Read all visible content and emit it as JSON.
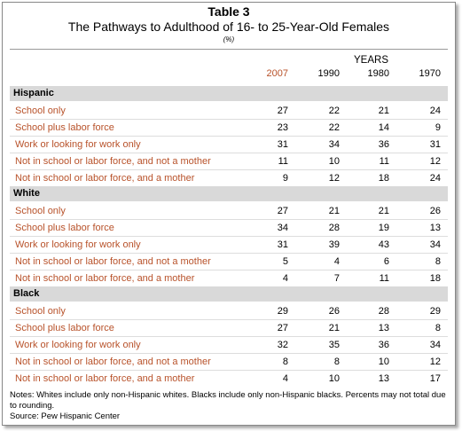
{
  "header": {
    "title": "Table 3",
    "subtitle": "The Pathways to Adulthood of 16- to 25-Year-Old Females",
    "unit": "(%)"
  },
  "table": {
    "group_label": "YEARS",
    "columns": [
      "2007",
      "1990",
      "1980",
      "1970"
    ],
    "sections": [
      {
        "name": "Hispanic",
        "rows": [
          {
            "label": "School only",
            "values": [
              27,
              22,
              21,
              24
            ]
          },
          {
            "label": "School plus labor force",
            "values": [
              23,
              22,
              14,
              9
            ]
          },
          {
            "label": "Work or looking for work only",
            "values": [
              31,
              34,
              36,
              31
            ]
          },
          {
            "label": "Not in school or labor force, and not a mother",
            "values": [
              11,
              10,
              11,
              12
            ]
          },
          {
            "label": "Not in school or labor force, and a mother",
            "values": [
              9,
              12,
              18,
              24
            ]
          }
        ]
      },
      {
        "name": "White",
        "rows": [
          {
            "label": "School only",
            "values": [
              27,
              21,
              21,
              26
            ]
          },
          {
            "label": "School plus labor force",
            "values": [
              34,
              28,
              19,
              13
            ]
          },
          {
            "label": "Work or looking for work only",
            "values": [
              31,
              39,
              43,
              34
            ]
          },
          {
            "label": "Not in school or labor force, and not a mother",
            "values": [
              5,
              4,
              6,
              8
            ]
          },
          {
            "label": "Not in school or labor force, and a mother",
            "values": [
              4,
              7,
              11,
              18
            ]
          }
        ]
      },
      {
        "name": "Black",
        "rows": [
          {
            "label": "School only",
            "values": [
              29,
              26,
              28,
              29
            ]
          },
          {
            "label": "School plus labor force",
            "values": [
              27,
              21,
              13,
              8
            ]
          },
          {
            "label": "Work or looking for work only",
            "values": [
              32,
              35,
              36,
              34
            ]
          },
          {
            "label": "Not in school or labor force, and not a mother",
            "values": [
              8,
              8,
              10,
              12
            ]
          },
          {
            "label": "Not in school or labor force, and a mother",
            "values": [
              4,
              10,
              13,
              17
            ]
          }
        ]
      }
    ]
  },
  "notes": "Notes: Whites include only non-Hispanic whites. Blacks include only non-Hispanic blacks. Percents may not total due to rounding.",
  "source": "Source: Pew Hispanic Center"
}
